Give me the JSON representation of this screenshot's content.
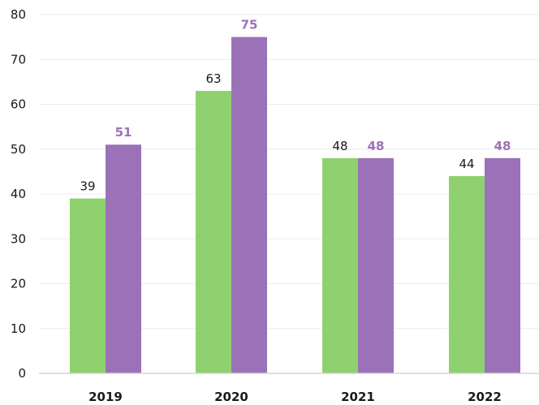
{
  "chart_data": {
    "type": "bar",
    "title": "",
    "xlabel": "",
    "ylabel": "",
    "categories": [
      "2019",
      "2020",
      "2021",
      "2022"
    ],
    "series": [
      {
        "values": [
          39,
          63,
          48,
          44
        ],
        "color": "#8fd16f",
        "label_color": "#1a1a1a",
        "label_bold": false
      },
      {
        "values": [
          51,
          75,
          48,
          48
        ],
        "color": "#9b72b8",
        "label_color": "#9b72b8",
        "label_bold": true
      }
    ],
    "ylim": [
      0,
      80
    ],
    "yticks": [
      0,
      10,
      20,
      30,
      40,
      50,
      60,
      70,
      80
    ],
    "grid": true,
    "legend": "none"
  }
}
